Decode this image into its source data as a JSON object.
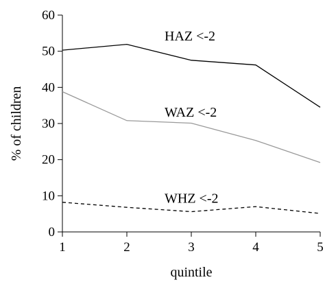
{
  "chart_data": {
    "type": "line",
    "xlabel": "quintile",
    "ylabel": "% of children",
    "xlim": [
      1,
      5
    ],
    "ylim": [
      0,
      60
    ],
    "xticks": [
      1,
      2,
      3,
      4,
      5
    ],
    "yticks": [
      0,
      10,
      20,
      30,
      40,
      50,
      60
    ],
    "grid": false,
    "x": [
      1,
      2,
      3,
      4,
      5
    ],
    "series": [
      {
        "name": "HAZ <-2",
        "values": [
          50.3,
          51.9,
          47.5,
          46.2,
          34.5
        ],
        "color": "#000000",
        "dash": "solid",
        "label_at": [
          2.5,
          54.3
        ]
      },
      {
        "name": "WAZ <-2",
        "values": [
          38.8,
          30.8,
          30.1,
          25.3,
          19.2
        ],
        "color": "#999999",
        "dash": "solid",
        "label_at": [
          2.5,
          33.2
        ]
      },
      {
        "name": "WHZ <-2",
        "values": [
          8.2,
          6.8,
          5.6,
          7.0,
          5.1
        ],
        "color": "#000000",
        "dash": "dashed",
        "label_at": [
          2.5,
          9.4
        ]
      }
    ]
  }
}
